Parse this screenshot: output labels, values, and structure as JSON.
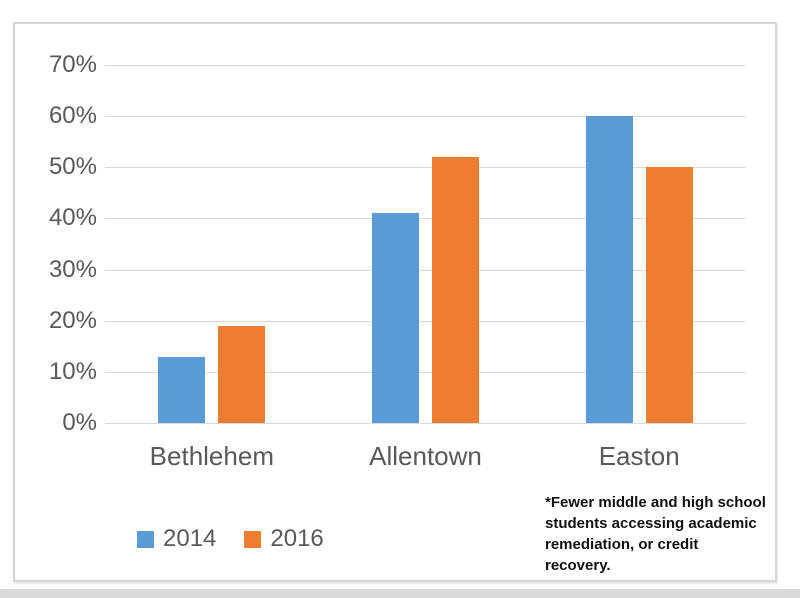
{
  "chart_data": {
    "type": "bar",
    "categories": [
      "Bethlehem",
      "Allentown",
      "Easton"
    ],
    "series": [
      {
        "name": "2014",
        "color": "#5B9BD5",
        "values": [
          13,
          41,
          60
        ]
      },
      {
        "name": "2016",
        "color": "#ED7D31",
        "values": [
          19,
          52,
          50
        ]
      }
    ],
    "title": "",
    "xlabel": "",
    "ylabel": "",
    "ylim": [
      0,
      70
    ],
    "ytick_step": 10,
    "ytick_labels": [
      "0%",
      "10%",
      "20%",
      "30%",
      "40%",
      "50%",
      "60%",
      "70%"
    ],
    "grid": true,
    "legend_position": "bottom-left"
  },
  "footnote": {
    "lines": [
      "*Fewer middle and high school",
      "students accessing academic",
      "remediation, or credit",
      "recovery."
    ]
  },
  "colors": {
    "gridline": "#d9d9d9",
    "axis_text": "#595959",
    "panel_border": "#d6d6d6",
    "footnote_text": "#111111",
    "bottom_strip": "#dadada"
  }
}
